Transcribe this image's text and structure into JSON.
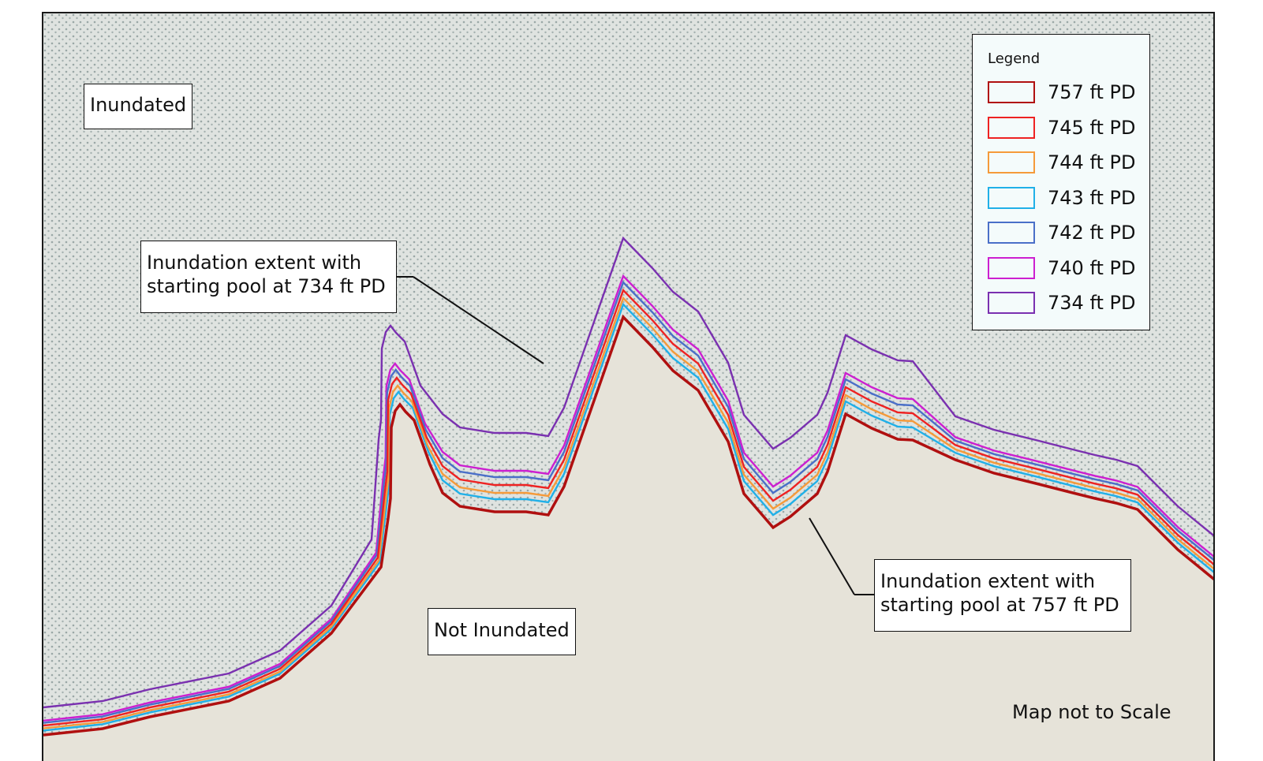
{
  "map": {
    "areas": {
      "inundated_label": "Inundated",
      "not_inundated_label": "Not Inundated"
    },
    "callouts": [
      {
        "line1": "Inundation extent with",
        "line2": "starting pool at 734 ft PD"
      },
      {
        "line1": "Inundation extent with",
        "line2": "starting pool at 757 ft PD"
      }
    ],
    "legend": {
      "title": "Legend",
      "items": [
        {
          "label": "757 ft PD",
          "color": "#b01010"
        },
        {
          "label": "745 ft PD",
          "color": "#ee2222"
        },
        {
          "label": "744 ft PD",
          "color": "#f59a3a"
        },
        {
          "label": "743 ft PD",
          "color": "#20b0e8"
        },
        {
          "label": "742 ft PD",
          "color": "#4a6fc8"
        },
        {
          "label": "740 ft PD",
          "color": "#cc1fd0"
        },
        {
          "label": "734 ft PD",
          "color": "#7a30b0"
        }
      ]
    },
    "scale_note": "Map not to Scale",
    "colors": {
      "inundated_fill": "#dfe3e0",
      "inundated_stipple": "#9aa7a6",
      "not_inundated_fill": "#e6e3d9"
    }
  }
}
